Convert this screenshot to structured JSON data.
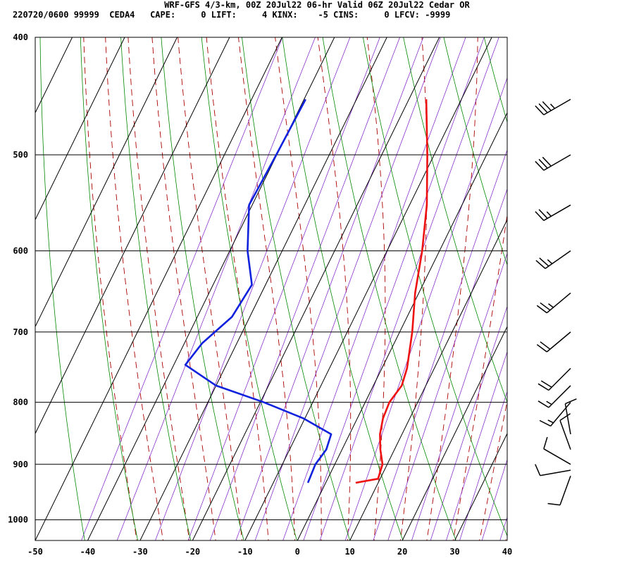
{
  "header": {
    "title": "WRF-GFS 4/3-km, 00Z 20Jul22 06-hr Valid 06Z 20Jul22 Cedar OR",
    "info": "220720/0600 99999  CEDA4   CAPE:     0 LIFT:     4 KINX:    -5 CINS:     0 LFCV: -9999"
  },
  "colors": {
    "temperature": "#ee1111",
    "dewpoint": "#1122dd",
    "isotherm": "#000000",
    "dry_adiabat": "#008800",
    "moist_adiabat": "#aa0000",
    "mixing_ratio": "#8833cc",
    "barb": "#000000"
  },
  "chart_data": {
    "type": "skew-t",
    "title": "",
    "xlabel": "",
    "ylabel": "",
    "x_ticks": [
      -50,
      -40,
      -30,
      -20,
      -10,
      0,
      10,
      20,
      30,
      40
    ],
    "y_ticks": [
      400,
      500,
      600,
      700,
      800,
      900,
      1000
    ],
    "xlim": [
      -50,
      40
    ],
    "ylim": [
      400,
      1040
    ],
    "y_scale": "log",
    "grid": true,
    "series": [
      {
        "key": "temperature",
        "points": [
          [
            -16.7,
            450
          ],
          [
            -11.3,
            500
          ],
          [
            -6.7,
            550
          ],
          [
            -3.3,
            600
          ],
          [
            -0.7,
            650
          ],
          [
            2.4,
            700
          ],
          [
            4.8,
            750
          ],
          [
            5.4,
            775
          ],
          [
            4.6,
            800
          ],
          [
            4.9,
            825
          ],
          [
            5.8,
            850
          ],
          [
            7.3,
            875
          ],
          [
            9.1,
            900
          ],
          [
            9.6,
            925
          ],
          [
            5.7,
            932
          ]
        ]
      },
      {
        "key": "dewpoint",
        "points": [
          [
            -39.7,
            450
          ],
          [
            -40.1,
            500
          ],
          [
            -40.6,
            550
          ],
          [
            -36.6,
            600
          ],
          [
            -32.6,
            640
          ],
          [
            -33.4,
            680
          ],
          [
            -36.6,
            715
          ],
          [
            -37.8,
            745
          ],
          [
            -30.0,
            775
          ],
          [
            -19.3,
            800
          ],
          [
            -10.2,
            825
          ],
          [
            -3.5,
            850
          ],
          [
            -3.0,
            875
          ],
          [
            -3.7,
            900
          ],
          [
            -3.4,
            932
          ]
        ]
      }
    ],
    "wind_barbs": [
      {
        "pressure": 450,
        "direction": 240,
        "speed_kt": 35
      },
      {
        "pressure": 500,
        "direction": 240,
        "speed_kt": 30
      },
      {
        "pressure": 550,
        "direction": 240,
        "speed_kt": 25
      },
      {
        "pressure": 600,
        "direction": 235,
        "speed_kt": 25
      },
      {
        "pressure": 650,
        "direction": 230,
        "speed_kt": 25
      },
      {
        "pressure": 700,
        "direction": 230,
        "speed_kt": 20
      },
      {
        "pressure": 750,
        "direction": 225,
        "speed_kt": 20
      },
      {
        "pressure": 775,
        "direction": 225,
        "speed_kt": 15
      },
      {
        "pressure": 800,
        "direction": 220,
        "speed_kt": 15
      },
      {
        "pressure": 850,
        "direction": 350,
        "speed_kt": 10
      },
      {
        "pressure": 875,
        "direction": 340,
        "speed_kt": 10
      },
      {
        "pressure": 900,
        "direction": 300,
        "speed_kt": 10
      },
      {
        "pressure": 910,
        "direction": 260,
        "speed_kt": 10
      },
      {
        "pressure": 920,
        "direction": 200,
        "speed_kt": 10
      }
    ]
  }
}
